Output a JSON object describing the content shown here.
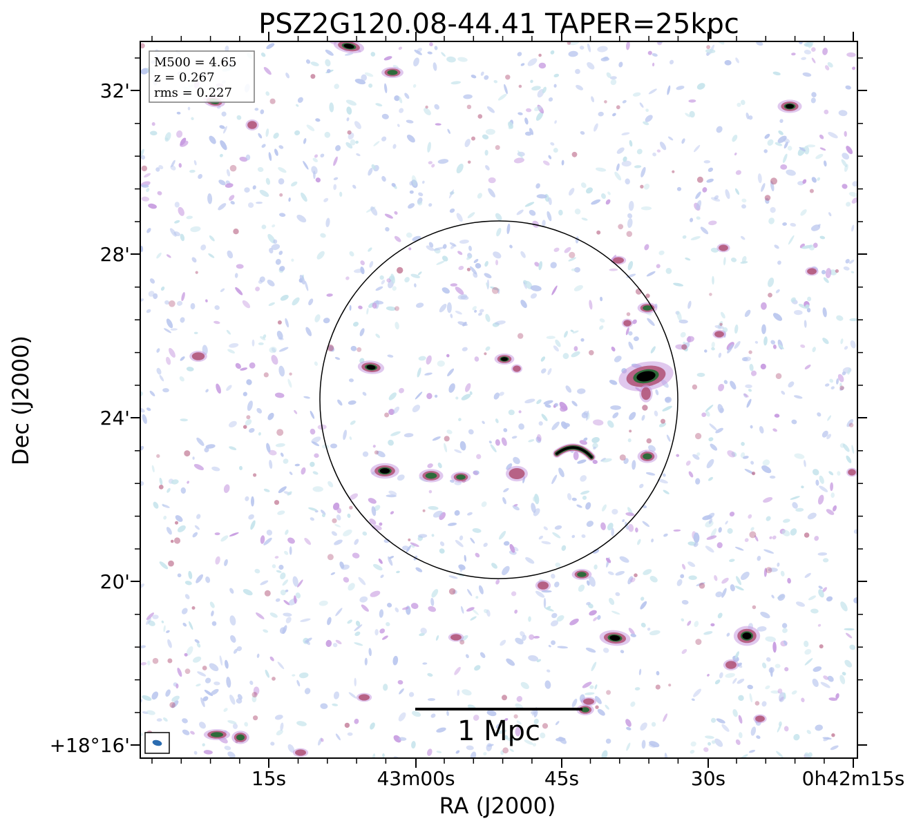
{
  "chart_data": {
    "type": "image",
    "title": "PSZ2G120.08-44.41 TAPER=25kpc",
    "xlabel": "RA (J2000)",
    "ylabel": "Dec (J2000)",
    "x_ticks": [
      "15s",
      "43m00s",
      "45s",
      "30s",
      "0h42m15s"
    ],
    "y_ticks": [
      "32'",
      "28'",
      "24'",
      "20'",
      "+18°16'"
    ],
    "info_box": [
      "M500 = 4.65",
      "z = 0.267",
      "rms = 0.227"
    ],
    "scale_bar_label": "1 Mpc",
    "colormap": [
      "#ffffff",
      "#c6e4ec",
      "#b9c6ee",
      "#c79be0",
      "#b2567a",
      "#2e6b3b",
      "#000000"
    ],
    "circle_color": "#000000",
    "beam_color": "#2b6cb0"
  }
}
